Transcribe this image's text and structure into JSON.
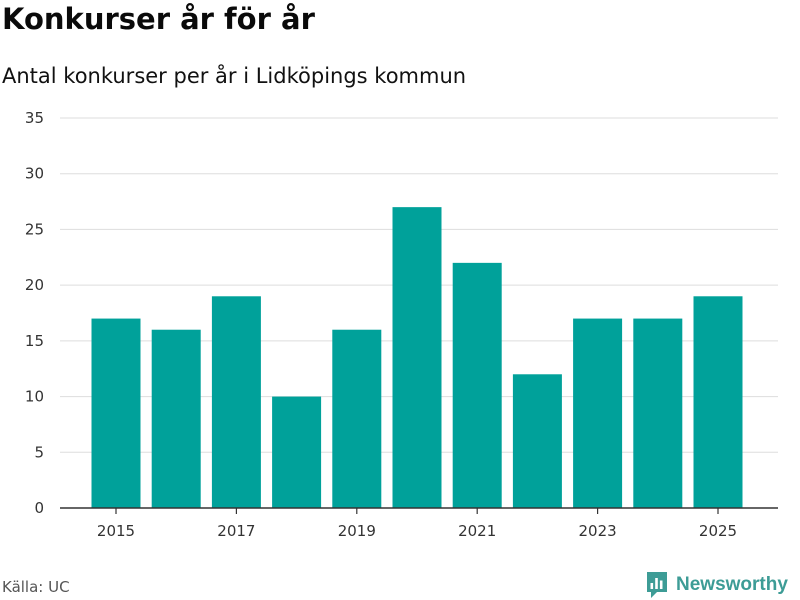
{
  "chart_data": {
    "type": "bar",
    "title": "Konkurser år för år",
    "subtitle": "Antal konkurser per år i Lidköpings kommun",
    "categories": [
      "2015",
      "2016",
      "2017",
      "2018",
      "2019",
      "2020",
      "2021",
      "2022",
      "2023",
      "2024",
      "2025"
    ],
    "values": [
      17,
      16,
      19,
      10,
      16,
      27,
      22,
      12,
      17,
      17,
      19
    ],
    "x_tick_labels": [
      "2015",
      "2017",
      "2019",
      "2021",
      "2023",
      "2025"
    ],
    "y_ticks": [
      0,
      5,
      10,
      15,
      20,
      25,
      30,
      35
    ],
    "ylim": [
      0,
      35
    ],
    "xlabel": "",
    "ylabel": "",
    "grid": true,
    "bar_color": "#00a19a"
  },
  "footer": {
    "source": "Källa: UC",
    "brand": "Newsworthy",
    "brand_icon": "newsworthy-logo-icon",
    "brand_color": "#3d9c96"
  }
}
